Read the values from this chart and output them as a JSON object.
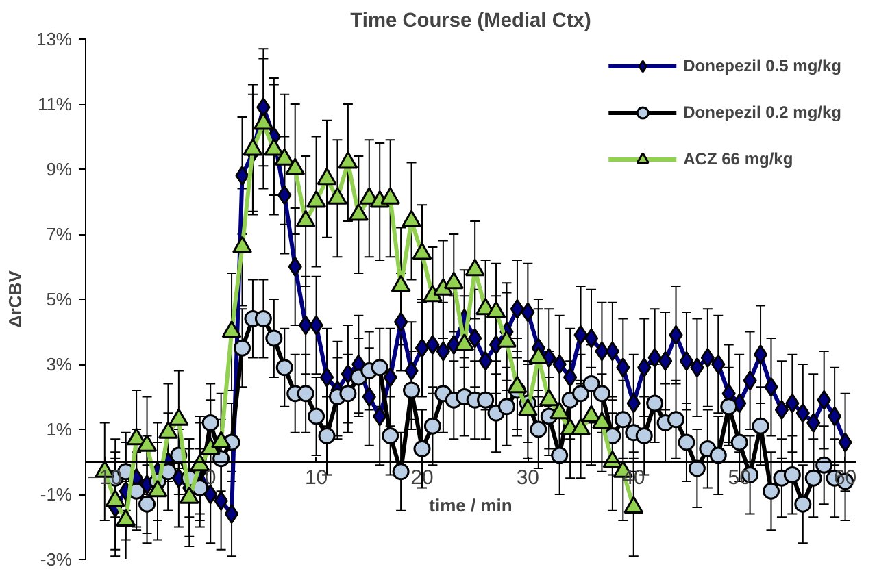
{
  "chart_data": {
    "type": "line",
    "title": "Time Course (Medial Ctx)",
    "xlabel": "time / min",
    "ylabel": "ΔrCBV",
    "xlim": [
      -11.8,
      61
    ],
    "xticks": [
      -10,
      0,
      10,
      20,
      30,
      40,
      50,
      60
    ],
    "ylim": [
      -3,
      13
    ],
    "yticks": [
      {
        "value": -3,
        "label": "-3%"
      },
      {
        "value": -1,
        "label": "-1%"
      },
      {
        "value": 1,
        "label": "1%"
      },
      {
        "value": 3,
        "label": "3%"
      },
      {
        "value": 5,
        "label": "5%"
      },
      {
        "value": 7,
        "label": "7%"
      },
      {
        "value": 9,
        "label": "9%"
      },
      {
        "value": 11,
        "label": "11%"
      },
      {
        "value": 13,
        "label": "13%"
      }
    ],
    "grid": false,
    "legend": "top right",
    "series": [
      {
        "name": "Donepezil 0.5 mg/kg",
        "color": "#000080",
        "marker": "diamond",
        "x": [
          -9,
          -8,
          -7,
          -6,
          -5,
          -4,
          -3,
          -2,
          -1,
          0,
          1,
          2,
          3,
          4,
          5,
          6,
          7,
          8,
          9,
          10,
          11,
          12,
          13,
          14,
          15,
          16,
          17,
          18,
          19,
          20,
          21,
          22,
          23,
          24,
          25,
          26,
          27,
          28,
          29,
          30,
          31,
          32,
          33,
          34,
          35,
          36,
          37,
          38,
          39,
          40,
          41,
          42,
          43,
          44,
          45,
          46,
          47,
          48,
          49,
          50,
          51,
          52,
          53,
          54,
          55,
          56,
          57,
          58,
          59,
          60
        ],
        "values": [
          -1.4,
          -0.9,
          -0.5,
          -0.7,
          -0.3,
          0.0,
          -0.5,
          -0.8,
          -0.3,
          -1.0,
          -1.2,
          -1.6,
          8.8,
          9.5,
          10.9,
          10.0,
          8.2,
          6.0,
          4.2,
          4.2,
          2.6,
          2.2,
          2.7,
          3.0,
          2.0,
          1.4,
          2.6,
          4.3,
          2.8,
          3.5,
          3.6,
          3.4,
          3.6,
          4.4,
          3.8,
          3.1,
          3.6,
          4.0,
          4.7,
          4.6,
          3.5,
          3.2,
          3.0,
          2.6,
          3.9,
          3.8,
          3.4,
          3.4,
          2.9,
          1.8,
          2.9,
          3.2,
          3.1,
          3.9,
          3.1,
          2.9,
          3.2,
          3.0,
          2.1,
          1.8,
          2.5,
          3.3,
          2.3,
          1.6,
          1.8,
          1.5,
          1.2,
          1.9,
          1.4,
          0.6
        ],
        "errors": [
          1.5,
          1.5,
          1.5,
          1.5,
          1.5,
          1.5,
          1.5,
          1.5,
          1.5,
          1.5,
          1.5,
          1.3,
          1.8,
          1.8,
          1.8,
          1.8,
          1.8,
          1.8,
          1.5,
          1.5,
          1.5,
          1.5,
          1.5,
          1.5,
          1.5,
          1.5,
          1.5,
          1.5,
          1.5,
          1.5,
          1.5,
          1.5,
          1.5,
          1.5,
          1.5,
          1.5,
          1.5,
          1.5,
          1.5,
          1.5,
          1.5,
          1.5,
          1.5,
          1.5,
          1.5,
          1.5,
          1.5,
          1.5,
          1.5,
          1.5,
          1.5,
          1.5,
          1.5,
          1.5,
          1.5,
          1.5,
          1.5,
          1.5,
          1.5,
          1.5,
          1.5,
          1.5,
          1.5,
          1.5,
          1.5,
          1.5,
          1.5,
          1.5,
          1.5,
          1.5
        ]
      },
      {
        "name": "Donepezil 0.2 mg/kg",
        "color": "#000000",
        "colors": [
          "#b9cde5",
          "#b9cde5",
          "#b9cde5",
          "#b9cde5",
          "#b9cde5",
          "#b9cde5",
          "#b9cde5",
          "#b9cde5",
          "#b9cde5",
          "#b9cde5",
          "#b9cde5",
          "#b9cde5",
          "#b9cde5",
          "#b9cde5",
          "#b9cde5",
          "#b9cde5",
          "#b9cde5",
          "#b9cde5",
          "#b9cde5",
          "#b9cde5",
          "#b9cde5",
          "#b9cde5",
          "#b9cde5",
          "#b9cde5",
          "#b9cde5",
          "#b9cde5",
          "#b9cde5",
          "#b9cde5",
          "#b9cde5",
          "#b9cde5",
          "#b9cde5",
          "#b9cde5",
          "#b9cde5",
          "#b9cde5",
          "#b9cde5",
          "#b9cde5",
          "#b9cde5",
          "#b9cde5",
          "#b9cde5",
          "#b9cde5",
          "#b9cde5",
          "#b9cde5",
          "#b9cde5",
          "#b9cde5",
          "#b9cde5",
          "#b9cde5",
          "#b9cde5",
          "#b9cde5",
          "#b9cde5",
          "#b9cde5",
          "#b9cde5",
          "#b9cde5",
          "#b9cde5",
          "#b9cde5",
          "#b9cde5",
          "#b9cde5",
          "#b9cde5",
          "#b9cde5",
          "#b9cde5",
          "#b9cde5",
          "#b9cde5",
          "#b9cde5",
          "#b9cde5",
          "#b9cde5",
          "#b9cde5",
          "#b9cde5",
          "#b9cde5",
          "#b9cde5",
          "#b9cde5",
          "#b9cde5"
        ],
        "marker": "circle",
        "x": [
          -9,
          -8,
          -7,
          -6,
          -5,
          -4,
          -3,
          -2,
          -1,
          0,
          1,
          2,
          3,
          4,
          5,
          6,
          7,
          8,
          9,
          10,
          11,
          12,
          13,
          14,
          15,
          16,
          17,
          18,
          19,
          20,
          21,
          22,
          23,
          24,
          25,
          26,
          27,
          28,
          29,
          30,
          31,
          32,
          33,
          34,
          35,
          36,
          37,
          38,
          39,
          40,
          41,
          42,
          43,
          44,
          45,
          46,
          47,
          48,
          49,
          50,
          51,
          52,
          53,
          54,
          55,
          56,
          57,
          58,
          59,
          60
        ],
        "values": [
          -0.5,
          -0.3,
          -0.9,
          -1.3,
          -0.6,
          -0.3,
          0.2,
          -0.5,
          -0.8,
          1.2,
          0.1,
          0.6,
          3.5,
          4.4,
          4.4,
          3.8,
          2.9,
          2.1,
          2.1,
          1.4,
          0.8,
          2.0,
          2.1,
          2.6,
          2.8,
          2.9,
          0.8,
          -0.3,
          2.2,
          0.4,
          1.1,
          2.1,
          1.9,
          2.0,
          1.9,
          1.9,
          1.5,
          1.7,
          2.2,
          1.8,
          1.0,
          1.4,
          0.2,
          1.9,
          2.1,
          2.4,
          2.1,
          0.8,
          1.3,
          0.9,
          0.8,
          1.8,
          1.2,
          1.3,
          0.6,
          -0.2,
          0.4,
          0.2,
          1.7,
          0.6,
          -0.4,
          1.1,
          -0.9,
          -0.5,
          -0.4,
          -1.3,
          -0.5,
          -0.1,
          -0.5,
          -0.6
        ],
        "errors": [
          1.2,
          1.2,
          1.2,
          1.2,
          1.2,
          1.2,
          1.2,
          1.2,
          1.2,
          1.2,
          1.2,
          1.2,
          1.2,
          1.2,
          1.2,
          1.2,
          1.2,
          1.2,
          1.2,
          1.2,
          1.2,
          1.2,
          1.2,
          1.2,
          1.2,
          1.2,
          1.2,
          1.2,
          1.2,
          1.2,
          1.2,
          1.2,
          1.2,
          1.2,
          1.2,
          1.2,
          1.2,
          1.2,
          1.2,
          1.2,
          1.2,
          1.2,
          1.2,
          1.2,
          1.2,
          1.2,
          1.2,
          1.2,
          1.2,
          1.2,
          1.2,
          1.2,
          1.2,
          1.2,
          1.2,
          1.2,
          1.2,
          1.2,
          1.2,
          1.2,
          1.2,
          1.2,
          1.2,
          1.2,
          1.2,
          1.2,
          1.2,
          1.2,
          1.2,
          1.2
        ]
      },
      {
        "name": "ACZ 66 mg/kg",
        "color": "#92d050",
        "marker": "triangle",
        "x": [
          -10,
          -9,
          -8,
          -7,
          -6,
          -5,
          -4,
          -3,
          -2,
          -1,
          0,
          1,
          2,
          3,
          4,
          5,
          6,
          7,
          8,
          9,
          10,
          11,
          12,
          13,
          14,
          15,
          16,
          17,
          18,
          19,
          20,
          21,
          22,
          23,
          24,
          25,
          26,
          27,
          28,
          29,
          30,
          31,
          32,
          33,
          34,
          35,
          36,
          37,
          38,
          39,
          40
        ],
        "values": [
          -0.3,
          -1.2,
          -1.8,
          0.7,
          0.5,
          -0.9,
          0.9,
          1.3,
          -1.1,
          -0.1,
          0.4,
          0.6,
          4.0,
          6.6,
          9.6,
          10.4,
          9.6,
          9.3,
          9.0,
          7.4,
          8.0,
          8.7,
          8.1,
          9.2,
          7.6,
          8.1,
          8.0,
          8.1,
          5.4,
          7.4,
          6.4,
          5.1,
          5.3,
          5.5,
          3.6,
          5.9,
          4.7,
          4.6,
          3.7,
          2.3,
          1.6,
          3.2,
          1.9,
          1.5,
          1.0,
          1.0,
          1.4,
          1.2,
          0.0,
          -0.3,
          -1.4
        ],
        "errors": [
          1.5,
          1.5,
          1.2,
          1.5,
          1.5,
          1.5,
          1.5,
          1.5,
          1.5,
          1.5,
          1.5,
          1.5,
          1.8,
          1.8,
          2.0,
          2.0,
          2.0,
          2.0,
          2.0,
          2.0,
          2.0,
          1.8,
          1.8,
          1.8,
          1.8,
          1.8,
          1.8,
          1.8,
          1.8,
          1.8,
          1.5,
          1.5,
          1.5,
          1.5,
          1.5,
          1.5,
          1.5,
          1.5,
          1.5,
          1.5,
          1.5,
          1.5,
          1.5,
          1.5,
          1.5,
          1.5,
          1.5,
          1.5,
          1.5,
          1.5,
          1.5
        ]
      }
    ]
  }
}
